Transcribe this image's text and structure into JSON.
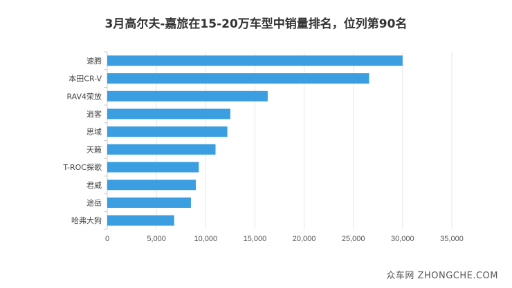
{
  "chart_data": {
    "type": "bar",
    "orientation": "horizontal",
    "title": "3月高尔夫-嘉旅在15-20万车型中销量排名，位列第90名",
    "categories": [
      "速腾",
      "本田CR-V",
      "RAV4荣放",
      "逍客",
      "思域",
      "天籁",
      "T-ROC探歌",
      "君威",
      "途岳",
      "哈弗大狗"
    ],
    "values": [
      30000,
      26600,
      16300,
      12500,
      12200,
      11000,
      9300,
      9000,
      8500,
      6800
    ],
    "xlim": [
      0,
      35000
    ],
    "xticks": [
      0,
      5000,
      10000,
      15000,
      20000,
      25000,
      30000,
      35000
    ],
    "xtick_labels": [
      "0",
      "5,000",
      "10,000",
      "15,000",
      "20,000",
      "25,000",
      "30,000",
      "35,000"
    ],
    "grid": "vertical",
    "legend": "none",
    "bar_color": "#3a9ee0"
  },
  "watermark": "众车网 ZHONGCHE.COM"
}
